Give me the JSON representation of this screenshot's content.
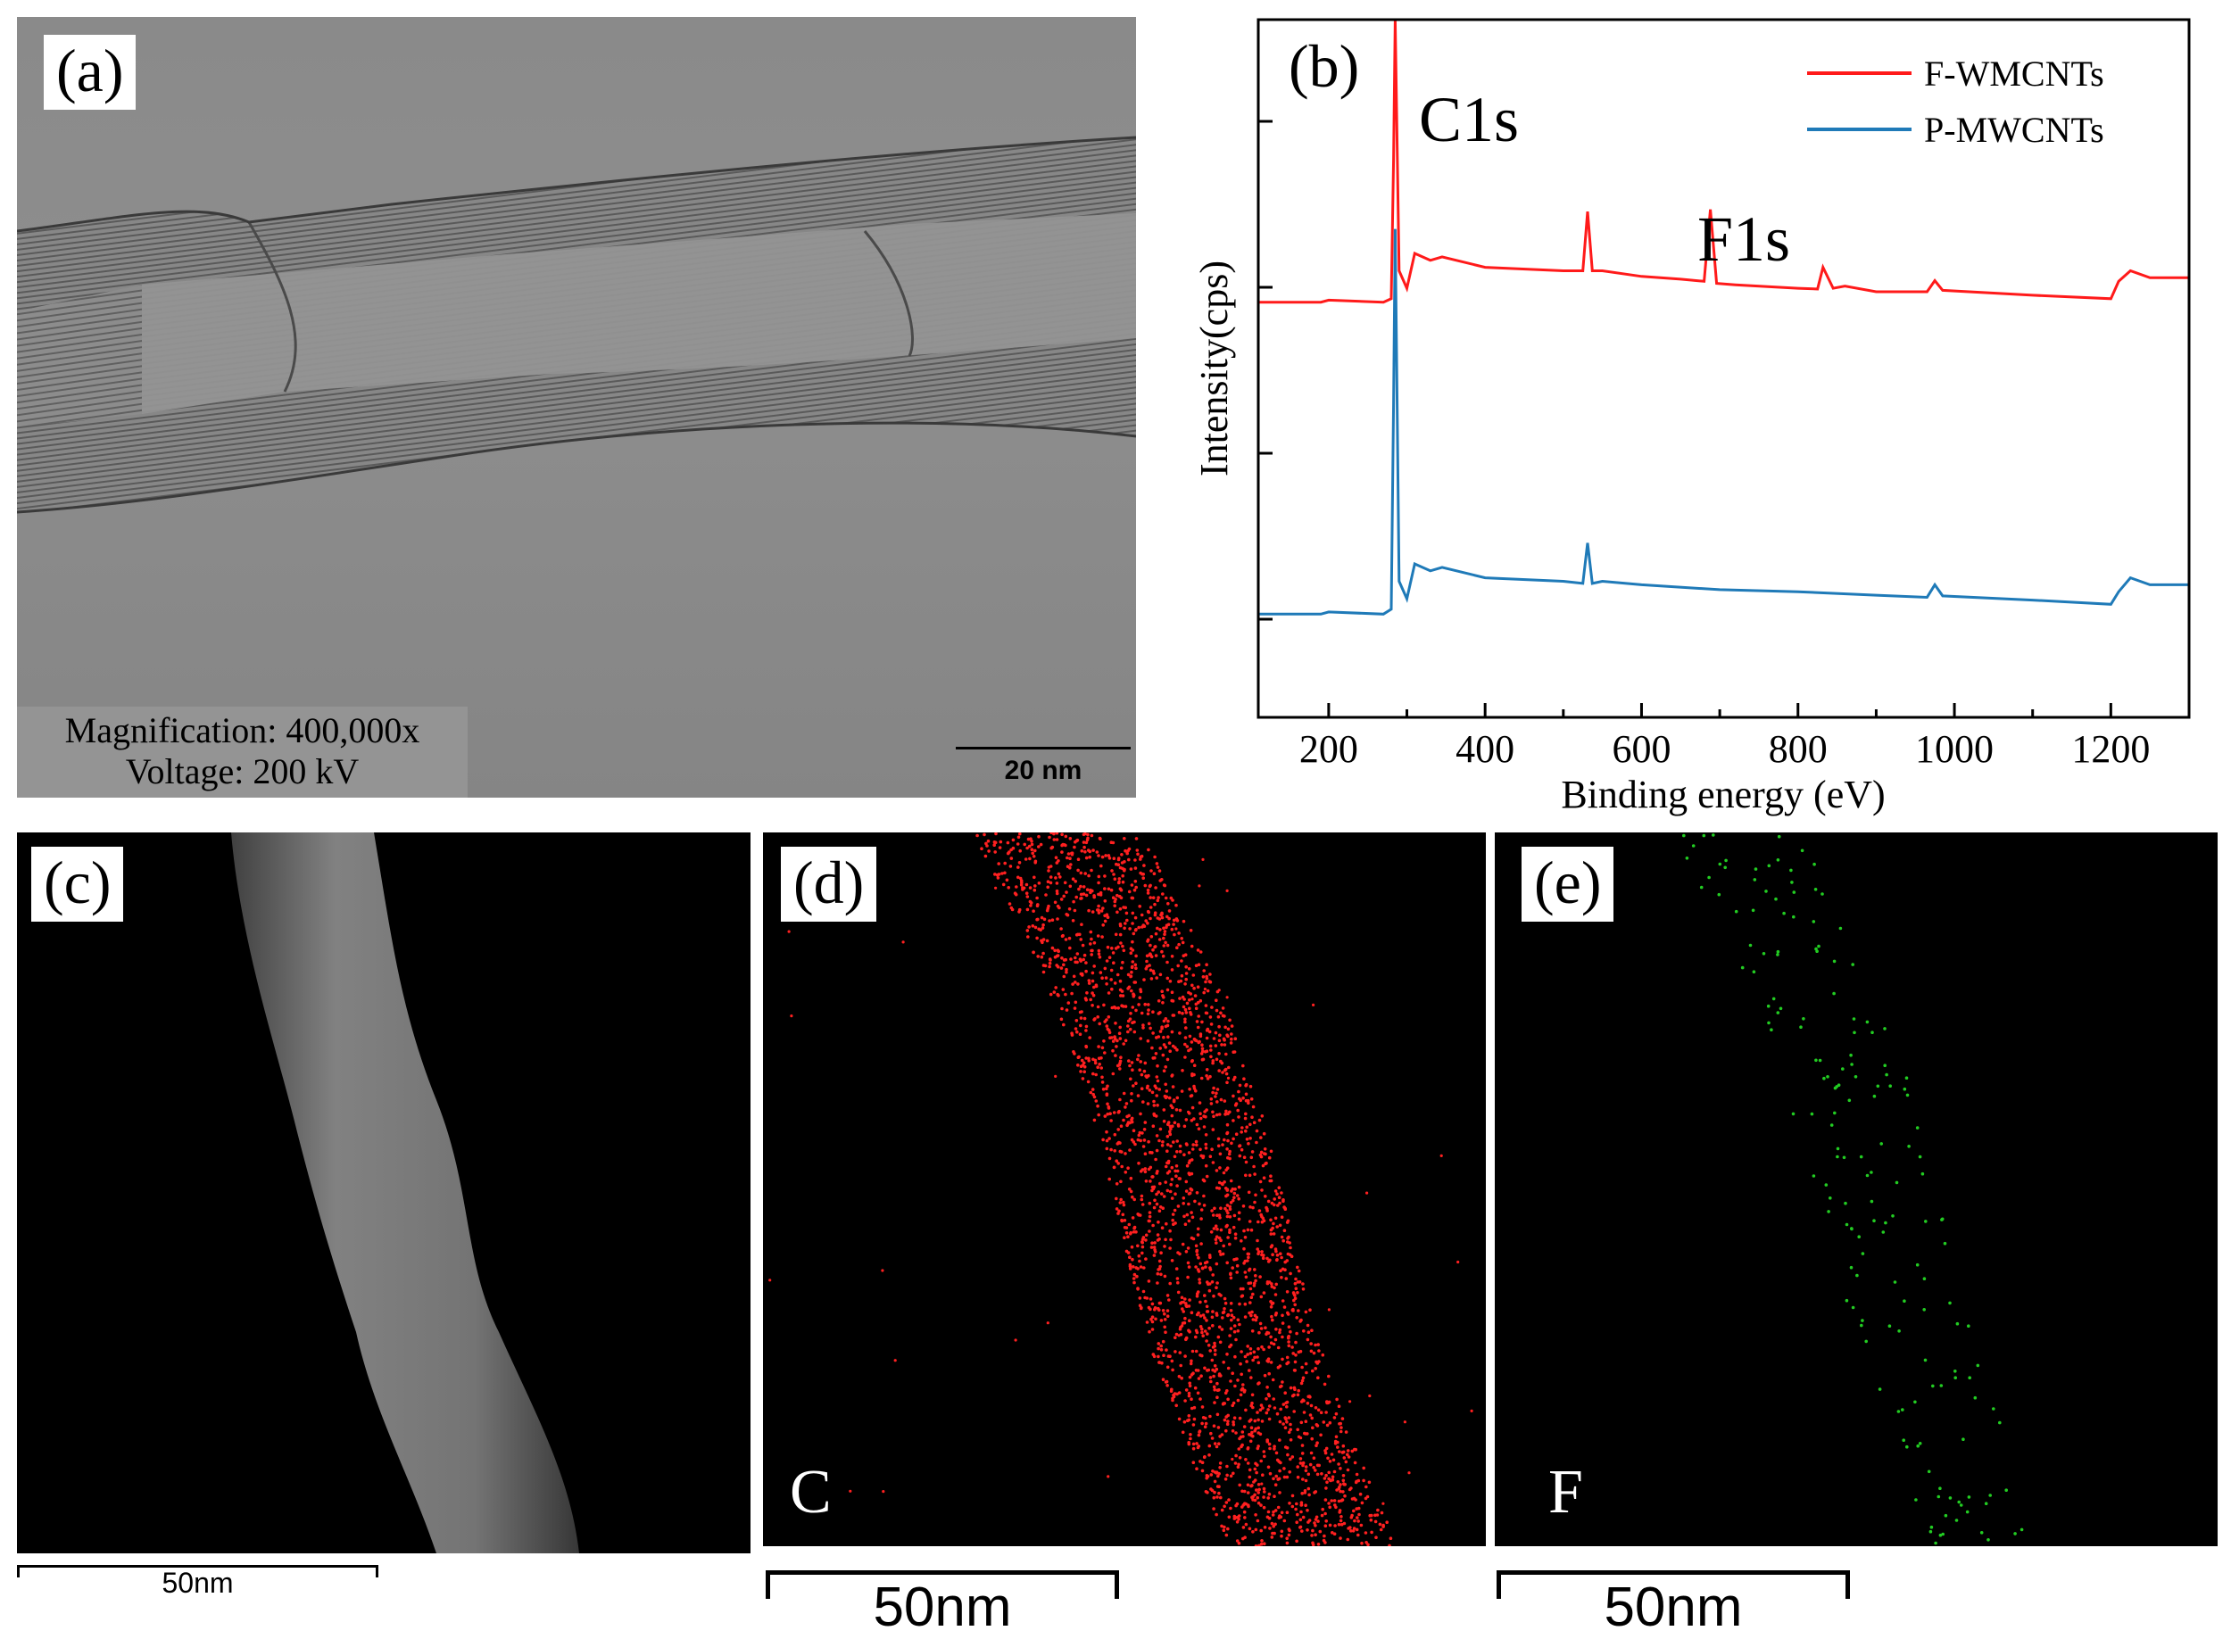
{
  "panels": {
    "a": {
      "label": "(a)",
      "magnification": "Magnification: 400,000x",
      "voltage": "Voltage: 200 kV",
      "scale_bar": "20 nm"
    },
    "b": {
      "label": "(b)"
    },
    "c": {
      "label": "(c)",
      "scale_bar": "50nm"
    },
    "d": {
      "label": "(d)",
      "element": "C",
      "scale_bar": "50nm"
    },
    "e": {
      "label": "(e)",
      "element": "F",
      "scale_bar": "50nm"
    }
  },
  "colors": {
    "f_series": "#ff1a1a",
    "p_series": "#1f7ab8",
    "c_map": "#ff2020",
    "f_map": "#22cc22"
  },
  "chart_data": {
    "type": "line",
    "title": "",
    "xlabel": "Binding energy (eV)",
    "ylabel": "Intensity(cps)",
    "xlim": [
      110,
      1300
    ],
    "xticks": [
      200,
      400,
      600,
      800,
      1000,
      1200
    ],
    "ylim": [
      0,
      1
    ],
    "y_tick_labels": false,
    "legend_position": "top-right",
    "annotations": [
      {
        "text": "C1s",
        "x": 285
      },
      {
        "text": "F1s",
        "x": 688
      }
    ],
    "series": [
      {
        "name": "F-WMCNTs",
        "x": [
          110,
          190,
          200,
          270,
          280,
          283,
          285,
          290,
          300,
          310,
          330,
          345,
          400,
          500,
          525,
          531,
          537,
          550,
          600,
          650,
          680,
          688,
          696,
          720,
          800,
          825,
          832,
          845,
          860,
          900,
          965,
          975,
          985,
          1100,
          1200,
          1210,
          1225,
          1250,
          1300
        ],
        "y": [
          0.595,
          0.595,
          0.598,
          0.595,
          0.6,
          0.8,
          1.0,
          0.64,
          0.615,
          0.665,
          0.655,
          0.66,
          0.645,
          0.64,
          0.64,
          0.725,
          0.64,
          0.64,
          0.632,
          0.628,
          0.625,
          0.728,
          0.622,
          0.62,
          0.615,
          0.614,
          0.645,
          0.615,
          0.618,
          0.61,
          0.61,
          0.626,
          0.612,
          0.605,
          0.6,
          0.625,
          0.64,
          0.63,
          0.63
        ]
      },
      {
        "name": "P-MWCNTs",
        "x": [
          110,
          190,
          200,
          270,
          280,
          283,
          285,
          290,
          300,
          310,
          330,
          345,
          400,
          500,
          525,
          531,
          537,
          550,
          600,
          700,
          800,
          900,
          965,
          975,
          985,
          1100,
          1200,
          1210,
          1225,
          1250,
          1300
        ],
        "y": [
          0.148,
          0.148,
          0.151,
          0.148,
          0.155,
          0.45,
          0.7,
          0.195,
          0.17,
          0.22,
          0.21,
          0.215,
          0.2,
          0.195,
          0.192,
          0.25,
          0.192,
          0.195,
          0.19,
          0.183,
          0.18,
          0.175,
          0.172,
          0.19,
          0.174,
          0.168,
          0.162,
          0.18,
          0.2,
          0.19,
          0.19
        ]
      }
    ]
  }
}
